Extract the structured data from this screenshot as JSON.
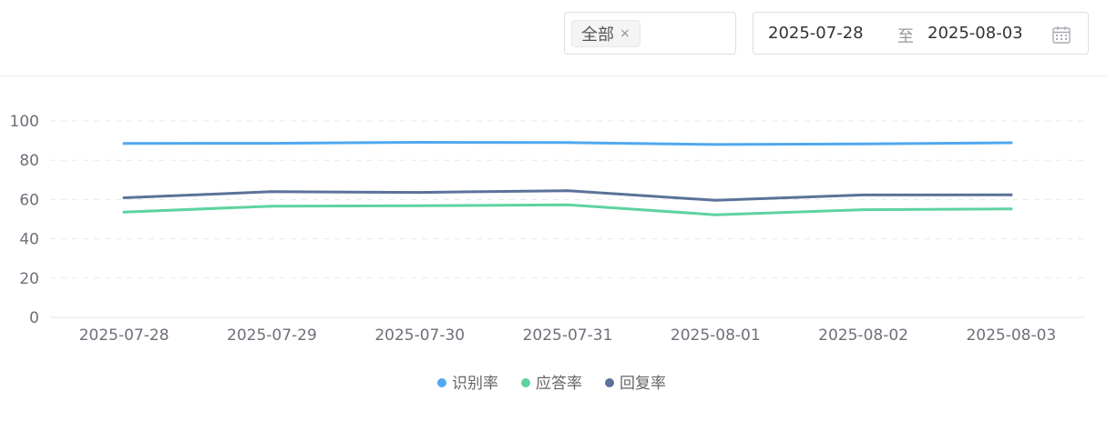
{
  "filter": {
    "tag_label": "全部",
    "tag_close": "×"
  },
  "date_range": {
    "start": "2025-07-28",
    "separator": "至",
    "end": "2025-08-03",
    "icon": "calendar-icon"
  },
  "chart_data": {
    "type": "line",
    "categories": [
      "2025-07-28",
      "2025-07-29",
      "2025-07-30",
      "2025-07-31",
      "2025-08-01",
      "2025-08-02",
      "2025-08-03"
    ],
    "ylim": [
      0,
      100
    ],
    "yticks": [
      0,
      20,
      40,
      60,
      80,
      100
    ],
    "grid": true,
    "legend_position": "bottom",
    "series": [
      {
        "name": "识别率",
        "color": "#4fa8f0",
        "values": [
          88.5,
          88.6,
          89.1,
          89.0,
          88.0,
          88.3,
          88.9
        ]
      },
      {
        "name": "应答率",
        "color": "#5dd39e",
        "values": [
          53.6,
          56.6,
          56.8,
          57.3,
          52.2,
          54.8,
          55.2
        ]
      },
      {
        "name": "回复率",
        "color": "#5b7299",
        "values": [
          60.9,
          64.0,
          63.6,
          64.5,
          59.6,
          62.3,
          62.4
        ]
      }
    ]
  }
}
